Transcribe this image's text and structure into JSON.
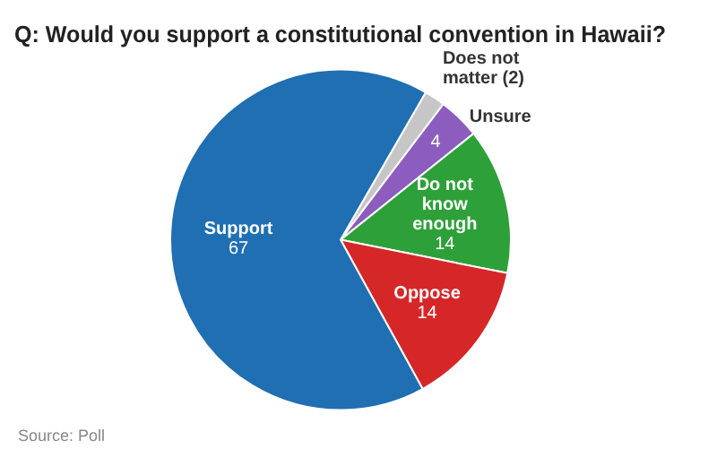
{
  "chart_data": {
    "type": "pie",
    "title": "Q: Would you support a constitutional convention in Hawaii?",
    "categories": [
      "Does not matter",
      "Unsure",
      "Do not know enough",
      "Oppose",
      "Support"
    ],
    "values": [
      2,
      4,
      14,
      14,
      67
    ],
    "value_labels": [
      "(2)",
      "4",
      "14",
      "14",
      "67"
    ],
    "colors": [
      "#c6c6c6",
      "#8c5cbf",
      "#2ea039",
      "#d62728",
      "#1f6fb2"
    ],
    "legend": false,
    "annotations": [
      "Source: Poll"
    ]
  }
}
